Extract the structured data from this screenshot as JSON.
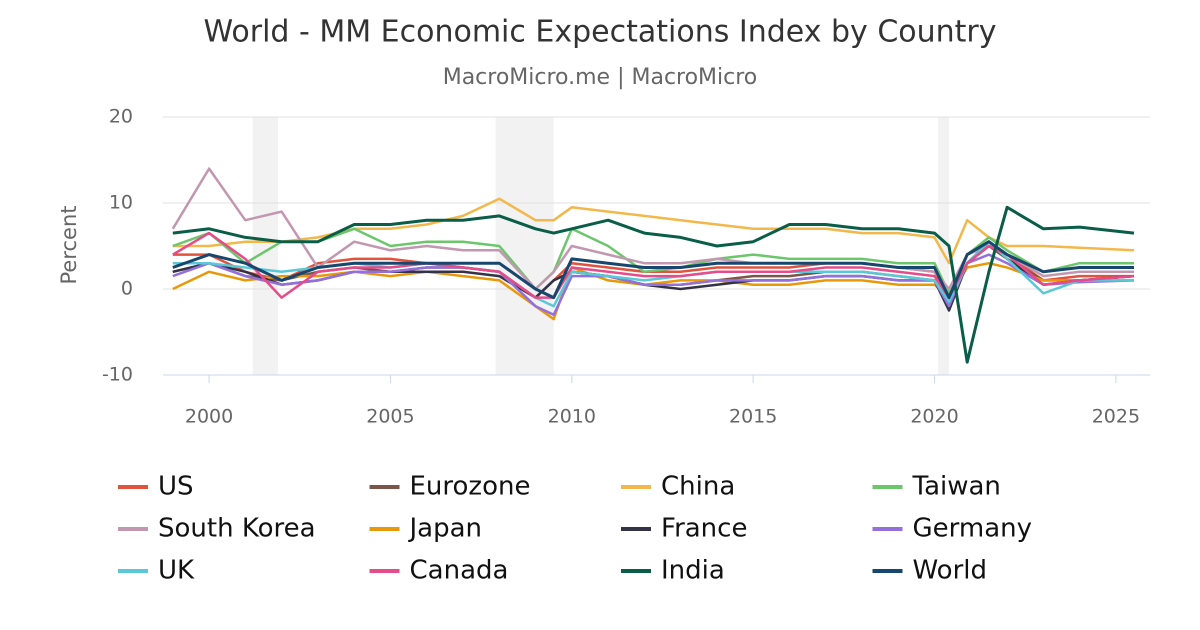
{
  "chart_data": {
    "type": "line",
    "title": "World - MM Economic Expectations Index by Country",
    "subtitle": "MacroMicro.me | MacroMicro",
    "y_label": "Percent",
    "xlim": [
      1998.73,
      2025.94
    ],
    "xticks": [
      2000,
      2005,
      2010,
      2015,
      2020,
      2025
    ],
    "ylim": [
      -10,
      20
    ],
    "yticks": [
      -10,
      0,
      10,
      20
    ],
    "grid": true,
    "shaded_ranges": [
      [
        2001.2,
        2001.9
      ],
      [
        2007.9,
        2009.5
      ],
      [
        2020.1,
        2020.4
      ]
    ],
    "x": [
      1999,
      2000,
      2001,
      2002,
      2003,
      2004,
      2005,
      2006,
      2007,
      2008,
      2009,
      2009.5,
      2010,
      2011,
      2012,
      2013,
      2014,
      2015,
      2016,
      2017,
      2018,
      2019,
      2020,
      2020.4,
      2020.9,
      2021.5,
      2022,
      2023,
      2024,
      2025.5
    ],
    "series": [
      {
        "name": "US",
        "color": "#e0533d",
        "values": [
          4,
          4,
          2,
          1,
          3,
          3.5,
          3.5,
          3,
          2.5,
          2,
          -1,
          1,
          3,
          2.5,
          2,
          2,
          2.5,
          2.5,
          2.5,
          3,
          3,
          2.5,
          2,
          -1,
          3,
          5,
          4,
          1,
          1.5,
          1.5
        ]
      },
      {
        "name": "Eurozone",
        "color": "#7b5547",
        "values": [
          2,
          3,
          1.5,
          1,
          2,
          2.5,
          2,
          2.5,
          2.5,
          2,
          -1,
          1,
          2,
          1.5,
          0.5,
          0.5,
          1,
          1.5,
          1.5,
          2,
          2,
          1.5,
          1,
          -2,
          3,
          5,
          3.5,
          1,
          1,
          1.5
        ]
      },
      {
        "name": "China",
        "color": "#f2b84b",
        "values": [
          5,
          5,
          5.5,
          5.5,
          6,
          7,
          7,
          7.5,
          8.5,
          10.5,
          8,
          8,
          9.5,
          9,
          8.5,
          8,
          7.5,
          7,
          7,
          7,
          6.5,
          6.5,
          6,
          3,
          8,
          6,
          5,
          5,
          4.8,
          4.5
        ]
      },
      {
        "name": "Taiwan",
        "color": "#6cc66c",
        "values": [
          5,
          6.5,
          3,
          5.5,
          5.5,
          7,
          5,
          5.5,
          5.5,
          5,
          0,
          2,
          7,
          5,
          2,
          2.5,
          3.5,
          4,
          3.5,
          3.5,
          3.5,
          3,
          3,
          -0.5,
          4,
          6,
          4.5,
          2,
          3,
          3
        ]
      },
      {
        "name": "South Korea",
        "color": "#c298b0",
        "values": [
          7,
          14,
          8,
          9,
          2.5,
          5.5,
          4.5,
          5,
          4.5,
          4.5,
          0,
          2,
          5,
          4,
          3,
          3,
          3.5,
          3,
          3,
          3,
          3,
          2.5,
          2,
          0,
          4,
          5,
          4,
          1.5,
          2,
          2
        ]
      },
      {
        "name": "Japan",
        "color": "#e8990a",
        "values": [
          0,
          2,
          1,
          1.5,
          1.5,
          2,
          1.5,
          2,
          1.5,
          1,
          -2,
          -3.5,
          2.5,
          1,
          0.5,
          1,
          1,
          0.5,
          0.5,
          1,
          1,
          0.5,
          0.5,
          -1,
          2.5,
          3,
          2.5,
          1,
          1,
          1
        ]
      },
      {
        "name": "France",
        "color": "#333347",
        "values": [
          2,
          3,
          2,
          0.5,
          1,
          2,
          2,
          2,
          2,
          1.5,
          -1,
          1,
          2,
          1.5,
          0.5,
          0,
          0.5,
          1,
          1,
          1.5,
          1.5,
          1,
          1,
          -2.5,
          3,
          5.5,
          3.5,
          0.5,
          1,
          1.5
        ]
      },
      {
        "name": "Germany",
        "color": "#9370db",
        "values": [
          1.5,
          3,
          1.5,
          0.5,
          1,
          2,
          2,
          2.5,
          2.5,
          2,
          -2,
          -3,
          1.5,
          1.5,
          0.5,
          0.5,
          1,
          1,
          1,
          1.5,
          1.5,
          1,
          1,
          -2,
          3,
          4,
          3,
          0.5,
          0.8,
          1
        ]
      },
      {
        "name": "UK",
        "color": "#5bc8d8",
        "values": [
          3,
          3,
          2.5,
          2,
          2.5,
          3,
          2.5,
          3,
          2.5,
          2,
          -1,
          -2,
          2,
          1.5,
          1,
          1.5,
          2,
          2,
          2,
          2,
          2,
          1.5,
          1,
          -1.5,
          3,
          5.5,
          3.5,
          -0.5,
          1,
          1
        ]
      },
      {
        "name": "Canada",
        "color": "#e64c8a",
        "values": [
          4,
          6.5,
          3.5,
          -1,
          2,
          2.5,
          2.5,
          3,
          2.5,
          2,
          -1,
          -1,
          2.5,
          2,
          1.5,
          1.5,
          2,
          2,
          2,
          2.5,
          2.5,
          2,
          1.5,
          -1,
          3,
          5,
          4,
          0.5,
          1,
          1.5
        ]
      },
      {
        "name": "India",
        "color": "#0a5e48",
        "values": [
          6.5,
          7,
          6,
          5.5,
          5.5,
          7.5,
          7.5,
          8,
          8,
          8.5,
          7,
          6.5,
          7,
          8,
          6.5,
          6,
          5,
          5.5,
          7.5,
          7.5,
          7,
          7,
          6.5,
          5,
          -8.5,
          2,
          9.5,
          7,
          7.2,
          6.5
        ]
      },
      {
        "name": "World",
        "color": "#17466e",
        "values": [
          2.5,
          4,
          3,
          1,
          2.5,
          3,
          3,
          3,
          3,
          3,
          0,
          -1,
          3.5,
          3,
          2.5,
          2.5,
          3,
          3,
          3,
          3,
          3,
          2.5,
          2.5,
          -1,
          4,
          5.5,
          4,
          2,
          2.5,
          2.5
        ]
      }
    ]
  }
}
